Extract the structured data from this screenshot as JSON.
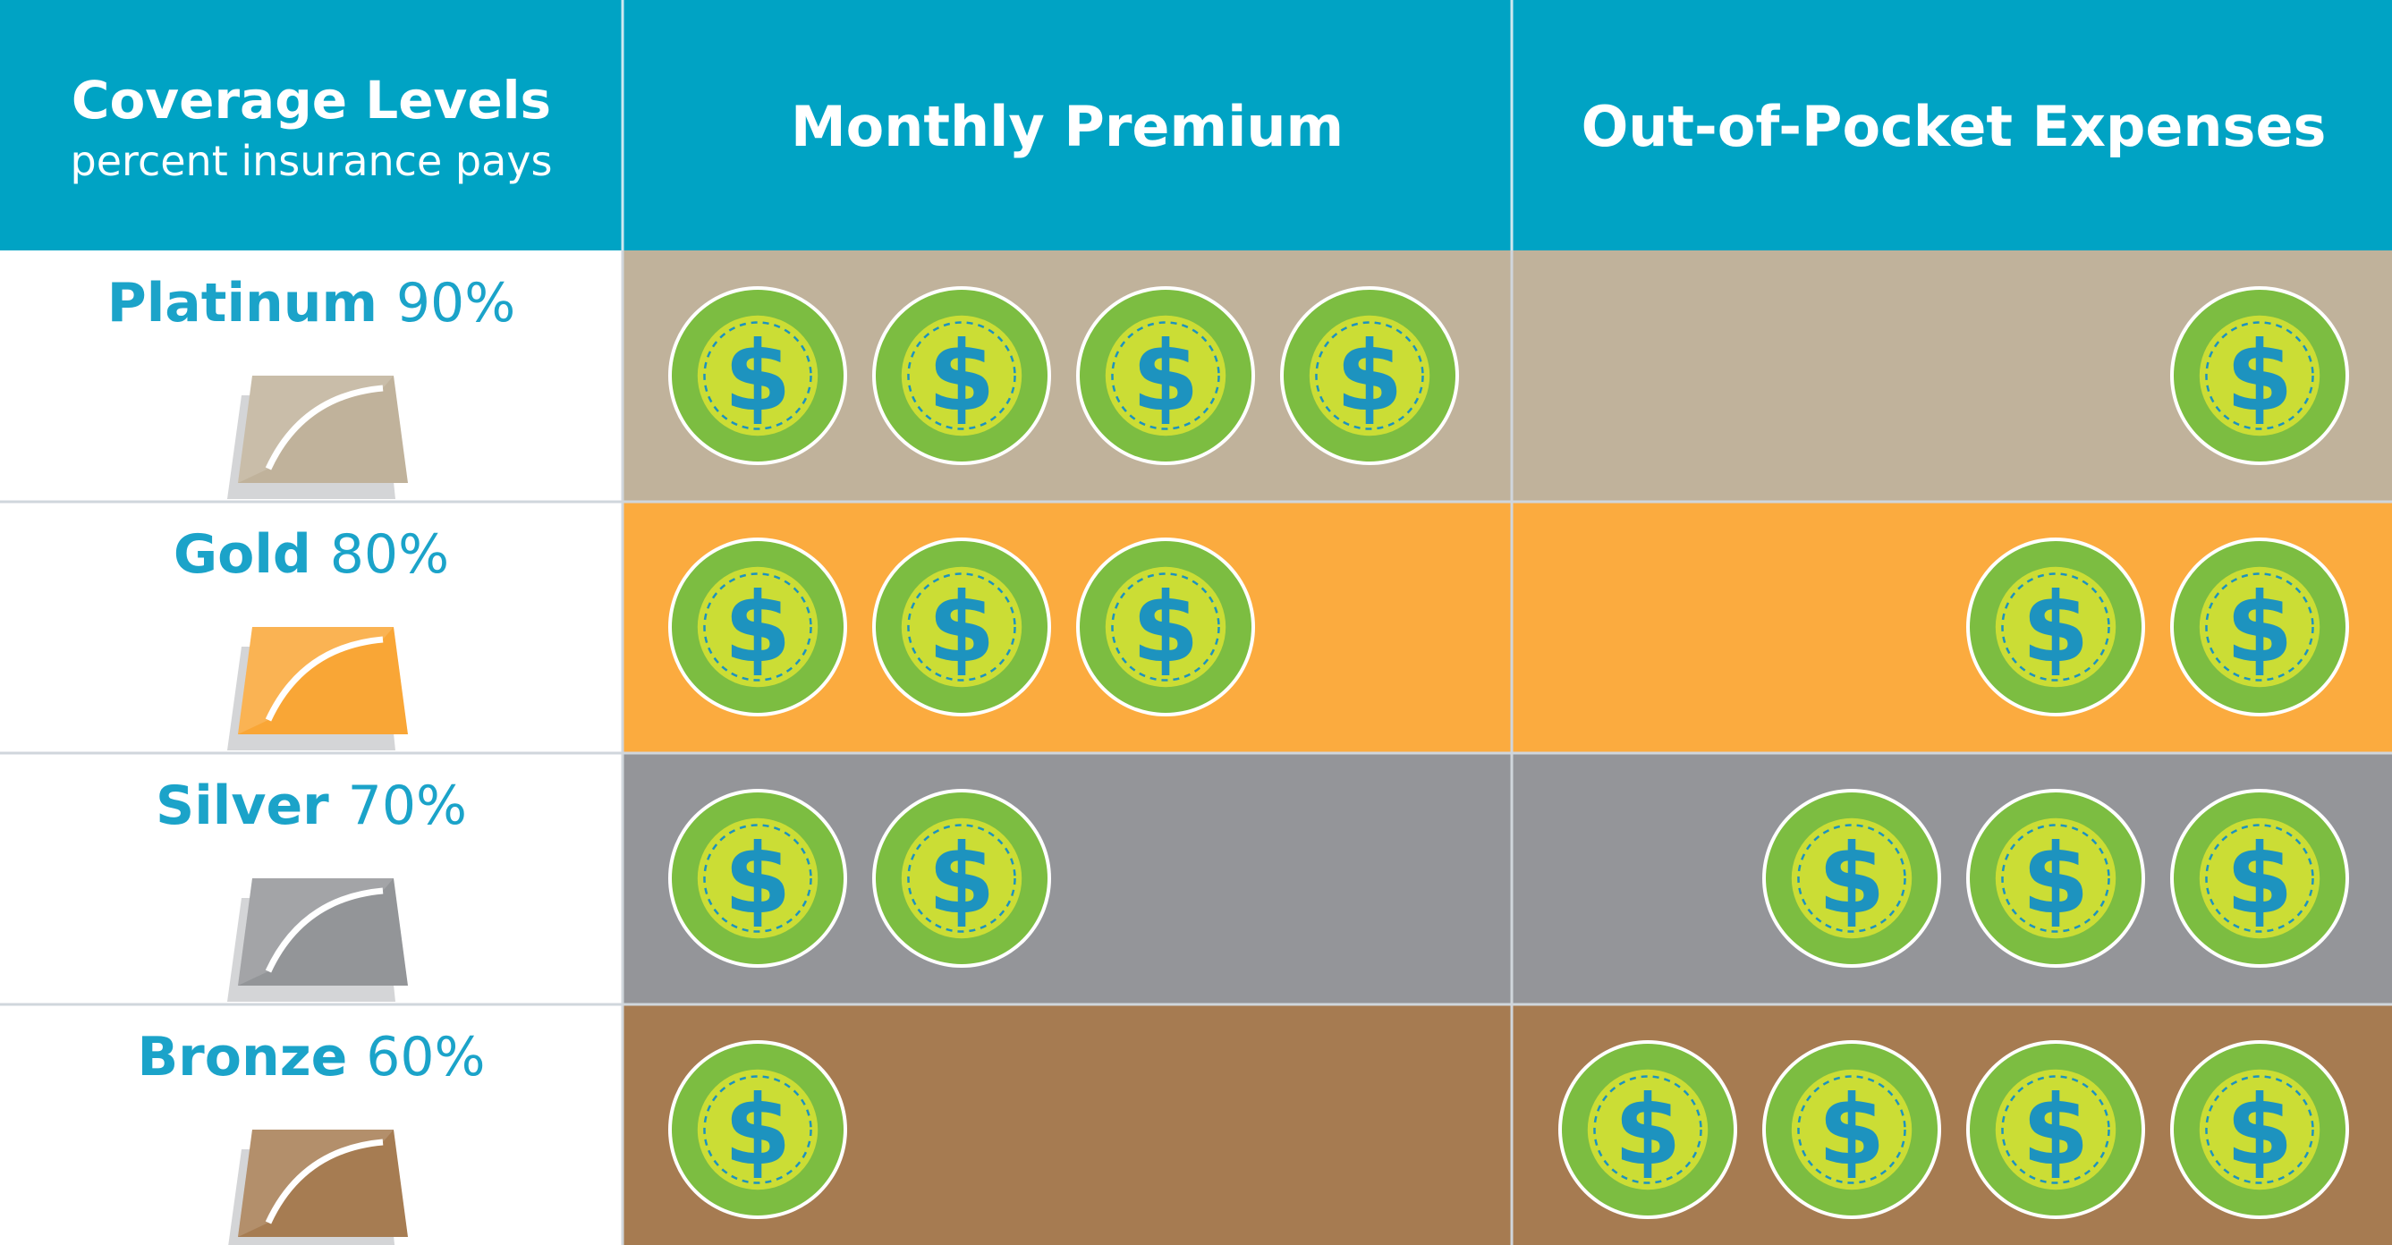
{
  "colors": {
    "header": "#00a3c4",
    "text_accent": "#1ba3c9",
    "divider": "#d0d6dc",
    "coin_outer": "#7cbd41",
    "coin_inner": "#cbdd35",
    "coin_sign": "#1d93bf"
  },
  "header": {
    "col1_title": "Coverage Levels",
    "col1_subtitle": "percent insurance pays",
    "col2_title": "Monthly Premium",
    "col3_title": "Out-of-Pocket Expenses"
  },
  "coin_symbol": "$",
  "icon": "dollar-coin-icon",
  "chart_data": {
    "type": "table",
    "columns": [
      "Coverage Levels",
      "Monthly Premium",
      "Out-of-Pocket Expenses"
    ],
    "rows": [
      {
        "level": "Platinum",
        "percent": "90%",
        "premium_coins": 4,
        "out_of_pocket_coins": 1,
        "color": "#c0b29b",
        "swatch_color": "#c0b29b"
      },
      {
        "level": "Gold",
        "percent": "80%",
        "premium_coins": 3,
        "out_of_pocket_coins": 2,
        "color": "#fbab3f",
        "swatch_color": "#f9a636"
      },
      {
        "level": "Silver",
        "percent": "70%",
        "premium_coins": 2,
        "out_of_pocket_coins": 3,
        "color": "#949599",
        "swatch_color": "#939598"
      },
      {
        "level": "Bronze",
        "percent": "60%",
        "premium_coins": 1,
        "out_of_pocket_coins": 4,
        "color": "#a67b51",
        "swatch_color": "#a67c52"
      }
    ]
  }
}
